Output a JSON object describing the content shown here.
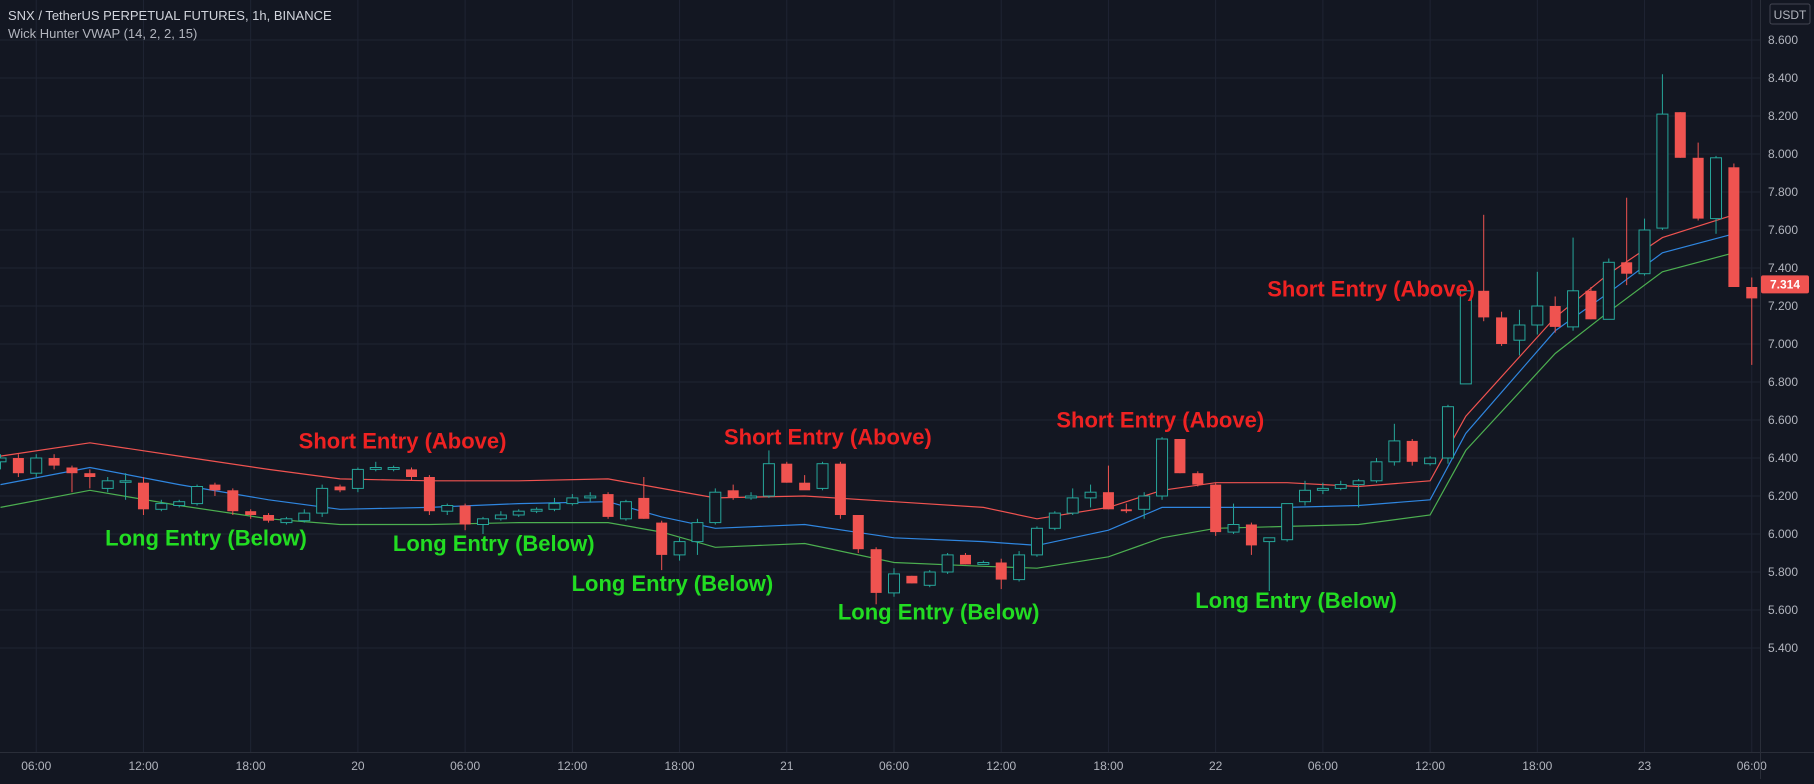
{
  "header": {
    "symbol": "SNX / TetherUS PERPETUAL FUTURES, 1h, BINANCE",
    "indicator": "Wick Hunter VWAP (14, 2, 2, 15)"
  },
  "colors": {
    "background": "#131722",
    "grid": "#1f2433",
    "up": "#26a69a",
    "down": "#ef5350",
    "upper_band": "#f05350",
    "vwap": "#2f86e0",
    "lower_band": "#4caf50",
    "long_label": "#22dd22",
    "short_label": "#ee2222",
    "axis_text": "#b2b5be"
  },
  "chart_data": {
    "type": "candlestick",
    "currency_label": "USDT",
    "last_price": 7.314,
    "last_price_label": "7.314",
    "y_axis": {
      "ylim": [
        5.36,
        8.72
      ],
      "ticks": [
        "5.400",
        "5.600",
        "5.800",
        "6.000",
        "6.200",
        "6.400",
        "6.600",
        "6.800",
        "7.000",
        "7.200",
        "7.400",
        "7.600",
        "7.800",
        "8.000",
        "8.200",
        "8.400",
        "8.600"
      ]
    },
    "x_axis": {
      "range": [
        0,
        97
      ],
      "ticks": [
        {
          "x": 2,
          "label": "06:00"
        },
        {
          "x": 8,
          "label": "12:00"
        },
        {
          "x": 14,
          "label": "18:00"
        },
        {
          "x": 20,
          "label": "20"
        },
        {
          "x": 26,
          "label": "06:00"
        },
        {
          "x": 32,
          "label": "12:00"
        },
        {
          "x": 38,
          "label": "18:00"
        },
        {
          "x": 44,
          "label": "21"
        },
        {
          "x": 50,
          "label": "06:00"
        },
        {
          "x": 56,
          "label": "12:00"
        },
        {
          "x": 62,
          "label": "18:00"
        },
        {
          "x": 68,
          "label": "22"
        },
        {
          "x": 74,
          "label": "06:00"
        },
        {
          "x": 80,
          "label": "12:00"
        },
        {
          "x": 86,
          "label": "18:00"
        },
        {
          "x": 92,
          "label": "23"
        },
        {
          "x": 98,
          "label": "06:00"
        }
      ]
    },
    "candles": [
      [
        6.38,
        6.42,
        6.34,
        6.4
      ],
      [
        6.4,
        6.42,
        6.3,
        6.32
      ],
      [
        6.32,
        6.42,
        6.3,
        6.4
      ],
      [
        6.4,
        6.42,
        6.34,
        6.36
      ],
      [
        6.35,
        6.36,
        6.22,
        6.32
      ],
      [
        6.32,
        6.34,
        6.24,
        6.3
      ],
      [
        6.24,
        6.3,
        6.22,
        6.28
      ],
      [
        6.28,
        6.32,
        6.18,
        6.28
      ],
      [
        6.27,
        6.3,
        6.1,
        6.13
      ],
      [
        6.13,
        6.18,
        6.12,
        6.16
      ],
      [
        6.15,
        6.18,
        6.14,
        6.17
      ],
      [
        6.16,
        6.26,
        6.15,
        6.25
      ],
      [
        6.26,
        6.27,
        6.2,
        6.23
      ],
      [
        6.23,
        6.24,
        6.1,
        6.12
      ],
      [
        6.12,
        6.13,
        6.08,
        6.1
      ],
      [
        6.1,
        6.11,
        6.06,
        6.07
      ],
      [
        6.06,
        6.09,
        6.05,
        6.08
      ],
      [
        6.07,
        6.13,
        6.06,
        6.11
      ],
      [
        6.11,
        6.26,
        6.09,
        6.24
      ],
      [
        6.25,
        6.26,
        6.22,
        6.23
      ],
      [
        6.24,
        6.35,
        6.22,
        6.34
      ],
      [
        6.34,
        6.38,
        6.33,
        6.35
      ],
      [
        6.34,
        6.36,
        6.33,
        6.35
      ],
      [
        6.34,
        6.35,
        6.28,
        6.3
      ],
      [
        6.3,
        6.31,
        6.1,
        6.12
      ],
      [
        6.12,
        6.16,
        6.1,
        6.15
      ],
      [
        6.15,
        6.16,
        6.02,
        6.05
      ],
      [
        6.05,
        6.09,
        6.0,
        6.08
      ],
      [
        6.08,
        6.12,
        6.07,
        6.1
      ],
      [
        6.1,
        6.13,
        6.09,
        6.12
      ],
      [
        6.12,
        6.14,
        6.11,
        6.13
      ],
      [
        6.13,
        6.19,
        6.12,
        6.16
      ],
      [
        6.16,
        6.21,
        6.15,
        6.19
      ],
      [
        6.19,
        6.22,
        6.17,
        6.2
      ],
      [
        6.21,
        6.22,
        6.08,
        6.09
      ],
      [
        6.08,
        6.18,
        6.07,
        6.17
      ],
      [
        6.19,
        6.3,
        6.08,
        6.08
      ],
      [
        6.06,
        6.07,
        5.81,
        5.89
      ],
      [
        5.89,
        5.98,
        5.86,
        5.96
      ],
      [
        5.96,
        6.08,
        5.89,
        6.06
      ],
      [
        6.06,
        6.24,
        6.05,
        6.22
      ],
      [
        6.23,
        6.26,
        6.18,
        6.19
      ],
      [
        6.19,
        6.22,
        6.18,
        6.2
      ],
      [
        6.2,
        6.44,
        6.19,
        6.37
      ],
      [
        6.37,
        6.38,
        6.27,
        6.27
      ],
      [
        6.27,
        6.31,
        6.24,
        6.23
      ],
      [
        6.24,
        6.38,
        6.23,
        6.37
      ],
      [
        6.37,
        6.38,
        6.08,
        6.1
      ],
      [
        6.1,
        6.1,
        5.9,
        5.92
      ],
      [
        5.92,
        5.93,
        5.63,
        5.69
      ],
      [
        5.69,
        5.82,
        5.67,
        5.79
      ],
      [
        5.78,
        5.78,
        5.74,
        5.74
      ],
      [
        5.73,
        5.81,
        5.72,
        5.8
      ],
      [
        5.8,
        5.9,
        5.79,
        5.89
      ],
      [
        5.89,
        5.9,
        5.84,
        5.84
      ],
      [
        5.84,
        5.86,
        5.84,
        5.85
      ],
      [
        5.85,
        5.87,
        5.71,
        5.76
      ],
      [
        5.76,
        5.91,
        5.75,
        5.89
      ],
      [
        5.89,
        6.04,
        5.88,
        6.03
      ],
      [
        6.03,
        6.12,
        6.02,
        6.11
      ],
      [
        6.11,
        6.24,
        6.1,
        6.19
      ],
      [
        6.19,
        6.26,
        6.14,
        6.22
      ],
      [
        6.22,
        6.36,
        6.13,
        6.13
      ],
      [
        6.13,
        6.16,
        6.11,
        6.12
      ],
      [
        6.13,
        6.22,
        6.08,
        6.2
      ],
      [
        6.2,
        6.51,
        6.18,
        6.5
      ],
      [
        6.5,
        6.5,
        6.32,
        6.32
      ],
      [
        6.32,
        6.33,
        6.25,
        6.26
      ],
      [
        6.26,
        6.27,
        5.99,
        6.01
      ],
      [
        6.01,
        6.16,
        6.0,
        6.05
      ],
      [
        6.05,
        6.06,
        5.89,
        5.94
      ],
      [
        5.96,
        5.98,
        5.7,
        5.98
      ],
      [
        5.97,
        6.16,
        5.96,
        6.16
      ],
      [
        6.17,
        6.28,
        6.15,
        6.23
      ],
      [
        6.23,
        6.27,
        6.21,
        6.24
      ],
      [
        6.24,
        6.28,
        6.23,
        6.26
      ],
      [
        6.26,
        6.29,
        6.14,
        6.28
      ],
      [
        6.28,
        6.4,
        6.27,
        6.38
      ],
      [
        6.38,
        6.58,
        6.36,
        6.49
      ],
      [
        6.49,
        6.5,
        6.36,
        6.38
      ],
      [
        6.37,
        6.41,
        6.36,
        6.4
      ],
      [
        6.4,
        6.68,
        6.37,
        6.67
      ],
      [
        6.79,
        7.3,
        6.79,
        7.28
      ],
      [
        7.28,
        7.68,
        7.12,
        7.14
      ],
      [
        7.14,
        7.17,
        6.99,
        7.0
      ],
      [
        7.02,
        7.18,
        6.94,
        7.1
      ],
      [
        7.1,
        7.38,
        7.05,
        7.2
      ],
      [
        7.2,
        7.25,
        7.06,
        7.09
      ],
      [
        7.09,
        7.56,
        7.07,
        7.28
      ],
      [
        7.28,
        7.3,
        7.13,
        7.13
      ],
      [
        7.13,
        7.45,
        7.13,
        7.43
      ],
      [
        7.43,
        7.77,
        7.31,
        7.37
      ],
      [
        7.37,
        7.66,
        7.36,
        7.6
      ],
      [
        7.61,
        8.42,
        7.6,
        8.21
      ],
      [
        8.22,
        8.22,
        7.98,
        7.98
      ],
      [
        7.98,
        8.06,
        7.65,
        7.66
      ],
      [
        7.66,
        7.99,
        7.58,
        7.98
      ],
      [
        7.93,
        7.95,
        7.3,
        7.3
      ],
      [
        7.3,
        7.35,
        6.89,
        7.24
      ],
      [
        7.24,
        7.61,
        7.16,
        7.55
      ],
      [
        7.55,
        7.56,
        7.25,
        7.31
      ]
    ],
    "series": [
      {
        "role": "upper",
        "x": [
          0,
          5,
          10,
          15,
          19,
          24,
          29,
          34,
          37,
          40,
          45,
          50,
          55,
          58,
          62,
          65,
          68,
          72,
          76,
          80,
          82,
          87,
          90,
          93,
          97
        ],
        "values": [
          6.41,
          6.48,
          6.41,
          6.34,
          6.29,
          6.28,
          6.28,
          6.29,
          6.24,
          6.19,
          6.2,
          6.17,
          6.14,
          6.08,
          6.14,
          6.23,
          6.27,
          6.27,
          6.25,
          6.28,
          6.62,
          7.14,
          7.37,
          7.56,
          7.68
        ]
      },
      {
        "role": "vwap",
        "x": [
          0,
          5,
          10,
          15,
          19,
          24,
          29,
          34,
          37,
          40,
          45,
          50,
          55,
          58,
          62,
          65,
          68,
          72,
          76,
          80,
          82,
          87,
          90,
          93,
          97
        ],
        "values": [
          6.26,
          6.35,
          6.26,
          6.18,
          6.13,
          6.14,
          6.16,
          6.17,
          6.09,
          6.03,
          6.05,
          5.98,
          5.96,
          5.94,
          6.02,
          6.14,
          6.14,
          6.14,
          6.15,
          6.18,
          6.53,
          7.07,
          7.27,
          7.48,
          7.58
        ]
      },
      {
        "role": "lower",
        "x": [
          0,
          5,
          10,
          15,
          19,
          24,
          29,
          34,
          37,
          40,
          45,
          50,
          55,
          58,
          62,
          65,
          68,
          72,
          76,
          80,
          82,
          87,
          90,
          93,
          97
        ],
        "values": [
          6.14,
          6.23,
          6.15,
          6.08,
          6.05,
          6.05,
          6.06,
          6.06,
          6.01,
          5.93,
          5.95,
          5.85,
          5.83,
          5.82,
          5.88,
          5.98,
          6.03,
          6.04,
          6.05,
          6.1,
          6.44,
          6.95,
          7.17,
          7.38,
          7.48
        ]
      }
    ],
    "annotations": [
      {
        "text": "Short Entry (Above)",
        "kind": "short",
        "x": 22.5,
        "y": 6.45
      },
      {
        "text": "Short Entry (Above)",
        "kind": "short",
        "x": 46.3,
        "y": 6.47
      },
      {
        "text": "Short Entry (Above)",
        "kind": "short",
        "x": 64.9,
        "y": 6.56
      },
      {
        "text": "Short Entry (Above)",
        "kind": "short",
        "x": 76.7,
        "y": 7.25
      },
      {
        "text": "Long Entry (Below)",
        "kind": "long",
        "x": 11.5,
        "y": 5.94
      },
      {
        "text": "Long Entry (Below)",
        "kind": "long",
        "x": 27.6,
        "y": 5.91
      },
      {
        "text": "Long Entry (Below)",
        "kind": "long",
        "x": 37.6,
        "y": 5.7
      },
      {
        "text": "Long Entry (Below)",
        "kind": "long",
        "x": 52.5,
        "y": 5.55
      },
      {
        "text": "Long Entry (Below)",
        "kind": "long",
        "x": 72.5,
        "y": 5.61
      }
    ]
  }
}
